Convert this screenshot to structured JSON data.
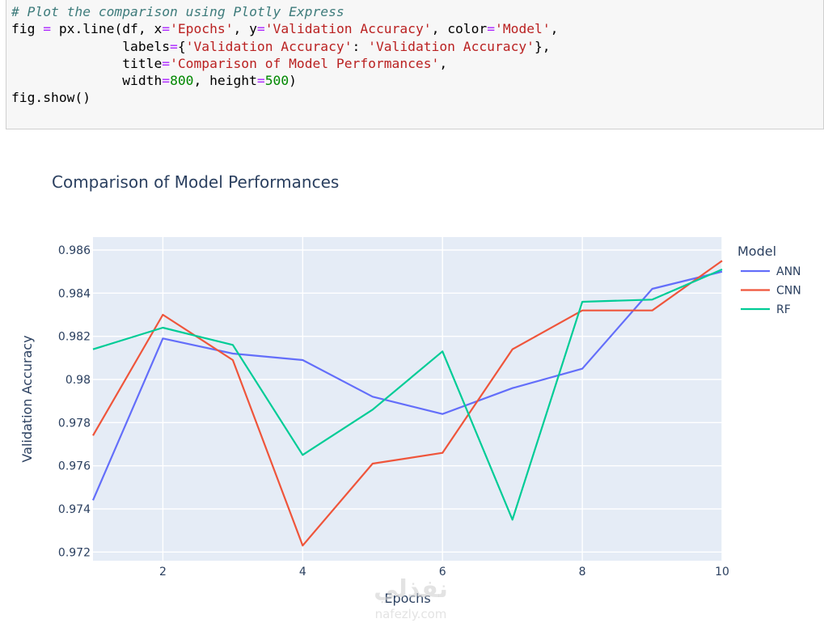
{
  "code": {
    "lines": [
      "# Plot the comparison using Plotly Express",
      "fig = px.line(df, x='Epochs', y='Validation Accuracy', color='Model',",
      "              labels={'Validation Accuracy': 'Validation Accuracy'},",
      "              title='Comparison of Model Performances',",
      "              width=800, height=500)",
      "fig.show()"
    ]
  },
  "watermark": {
    "logo_text": "نفذلي",
    "url": "nafezly.com"
  },
  "colors": {
    "plot_bg": "#e5ecf6",
    "grid": "#ffffff",
    "text": "#2a3f5f",
    "ANN": "#636efa",
    "CNN": "#ef553b",
    "RF": "#00cc96"
  },
  "chart_data": {
    "type": "line",
    "title": "Comparison of Model Performances",
    "xlabel": "Epochs",
    "ylabel": "Validation Accuracy",
    "legend_title": "Model",
    "legend_position": "right",
    "grid": true,
    "xlim": [
      1,
      10
    ],
    "ylim": [
      0.9716,
      0.9866
    ],
    "xticks": [
      2,
      4,
      6,
      8,
      10
    ],
    "yticks": [
      0.972,
      0.974,
      0.976,
      0.978,
      0.98,
      0.982,
      0.984,
      0.986
    ],
    "ytick_labels": [
      "0.972",
      "0.974",
      "0.976",
      "0.978",
      "0.98",
      "0.982",
      "0.984",
      "0.986"
    ],
    "x": [
      1,
      2,
      3,
      4,
      5,
      6,
      7,
      8,
      9,
      10
    ],
    "series": [
      {
        "name": "ANN",
        "values": [
          0.9744,
          0.9819,
          0.9812,
          0.9809,
          0.9792,
          0.9784,
          0.9796,
          0.9805,
          0.9842,
          0.985
        ]
      },
      {
        "name": "CNN",
        "values": [
          0.9774,
          0.983,
          0.9809,
          0.9723,
          0.9761,
          0.9766,
          0.9814,
          0.9832,
          0.9832,
          0.9855
        ]
      },
      {
        "name": "RF",
        "values": [
          0.9814,
          0.9824,
          0.9816,
          0.9765,
          0.9786,
          0.9813,
          0.9735,
          0.9836,
          0.9837,
          0.9851
        ]
      }
    ]
  }
}
